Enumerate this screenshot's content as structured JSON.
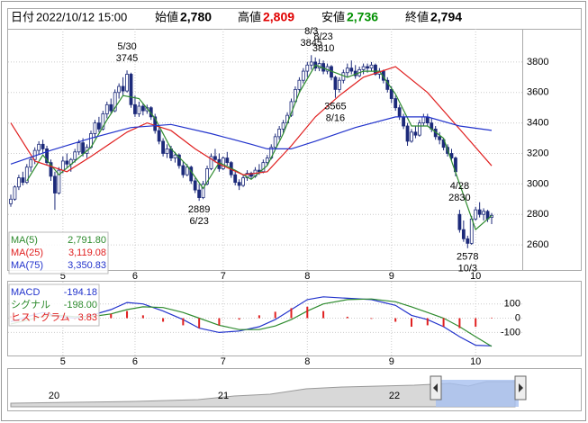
{
  "header": {
    "date_label": "日付",
    "date": "2022/10/12 15:00",
    "open_label": "始値",
    "open": "2,780",
    "high_label": "高値",
    "high": "2,809",
    "low_label": "安値",
    "low": "2,736",
    "close_label": "終値",
    "close": "2,794"
  },
  "chart_data": [
    {
      "type": "candlestick",
      "up_color": "#ffffff",
      "down_color": "#1c2a7a",
      "grid": true,
      "ylim": [
        2435,
        4018
      ],
      "yticks": [
        2600,
        2800,
        3000,
        3200,
        3400,
        3600,
        3800
      ],
      "xticks": [
        {
          "value": 13,
          "label": "5"
        },
        {
          "value": 31,
          "label": "6"
        },
        {
          "value": 53,
          "label": "7"
        },
        {
          "value": 74,
          "label": "8"
        },
        {
          "value": 95,
          "label": "9"
        },
        {
          "value": 116,
          "label": "10"
        }
      ],
      "candles": [
        [
          2870,
          2930,
          2850,
          2900
        ],
        [
          2900,
          2990,
          2890,
          2980
        ],
        [
          2980,
          3060,
          2960,
          3040
        ],
        [
          3040,
          3080,
          2990,
          3010
        ],
        [
          3010,
          3130,
          3000,
          3110
        ],
        [
          3110,
          3180,
          3080,
          3160
        ],
        [
          3160,
          3240,
          3130,
          3220
        ],
        [
          3220,
          3280,
          3190,
          3260
        ],
        [
          3260,
          3290,
          3200,
          3230
        ],
        [
          3230,
          3250,
          3120,
          3140
        ],
        [
          3140,
          3160,
          3020,
          3050
        ],
        [
          3050,
          3080,
          2830,
          2940
        ],
        [
          2940,
          3110,
          2930,
          3090
        ],
        [
          3090,
          3180,
          3070,
          3150
        ],
        [
          3150,
          3200,
          3110,
          3130
        ],
        [
          3130,
          3170,
          3080,
          3160
        ],
        [
          3160,
          3230,
          3140,
          3210
        ],
        [
          3210,
          3290,
          3190,
          3270
        ],
        [
          3270,
          3300,
          3180,
          3200
        ],
        [
          3200,
          3260,
          3170,
          3240
        ],
        [
          3240,
          3350,
          3230,
          3330
        ],
        [
          3330,
          3420,
          3300,
          3400
        ],
        [
          3400,
          3440,
          3340,
          3360
        ],
        [
          3360,
          3480,
          3350,
          3460
        ],
        [
          3460,
          3540,
          3430,
          3520
        ],
        [
          3520,
          3560,
          3460,
          3480
        ],
        [
          3480,
          3620,
          3470,
          3600
        ],
        [
          3600,
          3660,
          3560,
          3640
        ],
        [
          3640,
          3700,
          3580,
          3610
        ],
        [
          3610,
          3745,
          3600,
          3720
        ],
        [
          3720,
          3730,
          3500,
          3520
        ],
        [
          3520,
          3580,
          3440,
          3460
        ],
        [
          3460,
          3540,
          3440,
          3510
        ],
        [
          3510,
          3530,
          3450,
          3480
        ],
        [
          3480,
          3520,
          3460,
          3500
        ],
        [
          3500,
          3510,
          3420,
          3440
        ],
        [
          3440,
          3460,
          3330,
          3350
        ],
        [
          3350,
          3380,
          3260,
          3280
        ],
        [
          3280,
          3300,
          3180,
          3200
        ],
        [
          3200,
          3260,
          3170,
          3230
        ],
        [
          3230,
          3250,
          3150,
          3170
        ],
        [
          3170,
          3210,
          3140,
          3190
        ],
        [
          3190,
          3200,
          3100,
          3120
        ],
        [
          3120,
          3150,
          3040,
          3060
        ],
        [
          3060,
          3130,
          3050,
          3110
        ],
        [
          3110,
          3120,
          3000,
          3020
        ],
        [
          3020,
          3040,
          2940,
          2960
        ],
        [
          2960,
          3000,
          2889,
          2910
        ],
        [
          2910,
          3020,
          2900,
          3000
        ],
        [
          3000,
          3120,
          2990,
          3100
        ],
        [
          3100,
          3200,
          3090,
          3180
        ],
        [
          3180,
          3230,
          3140,
          3160
        ],
        [
          3160,
          3200,
          3080,
          3100
        ],
        [
          3100,
          3180,
          3090,
          3170
        ],
        [
          3170,
          3210,
          3120,
          3140
        ],
        [
          3140,
          3150,
          3040,
          3060
        ],
        [
          3060,
          3080,
          2990,
          3010
        ],
        [
          3010,
          3030,
          2960,
          2990
        ],
        [
          2990,
          3060,
          2980,
          3040
        ],
        [
          3040,
          3090,
          3020,
          3070
        ],
        [
          3070,
          3080,
          3030,
          3050
        ],
        [
          3050,
          3110,
          3040,
          3090
        ],
        [
          3090,
          3130,
          3060,
          3080
        ],
        [
          3080,
          3160,
          3070,
          3140
        ],
        [
          3140,
          3190,
          3120,
          3170
        ],
        [
          3170,
          3260,
          3160,
          3240
        ],
        [
          3240,
          3330,
          3230,
          3310
        ],
        [
          3310,
          3380,
          3290,
          3360
        ],
        [
          3360,
          3420,
          3330,
          3400
        ],
        [
          3400,
          3470,
          3390,
          3450
        ],
        [
          3450,
          3560,
          3440,
          3540
        ],
        [
          3540,
          3640,
          3530,
          3620
        ],
        [
          3620,
          3700,
          3600,
          3680
        ],
        [
          3680,
          3760,
          3660,
          3740
        ],
        [
          3740,
          3800,
          3700,
          3780
        ],
        [
          3780,
          3845,
          3750,
          3800
        ],
        [
          3800,
          3830,
          3740,
          3760
        ],
        [
          3760,
          3820,
          3740,
          3790
        ],
        [
          3790,
          3810,
          3720,
          3740
        ],
        [
          3740,
          3790,
          3720,
          3770
        ],
        [
          3770,
          3780,
          3680,
          3700
        ],
        [
          3700,
          3710,
          3565,
          3620
        ],
        [
          3620,
          3700,
          3600,
          3680
        ],
        [
          3680,
          3750,
          3660,
          3730
        ],
        [
          3730,
          3790,
          3700,
          3760
        ],
        [
          3760,
          3810,
          3720,
          3740
        ],
        [
          3740,
          3780,
          3690,
          3710
        ],
        [
          3710,
          3770,
          3700,
          3750
        ],
        [
          3750,
          3790,
          3720,
          3770
        ],
        [
          3770,
          3790,
          3730,
          3760
        ],
        [
          3760,
          3800,
          3740,
          3780
        ],
        [
          3780,
          3790,
          3710,
          3720
        ],
        [
          3720,
          3760,
          3690,
          3740
        ],
        [
          3740,
          3750,
          3660,
          3680
        ],
        [
          3680,
          3700,
          3600,
          3620
        ],
        [
          3620,
          3640,
          3530,
          3560
        ],
        [
          3560,
          3580,
          3480,
          3500
        ],
        [
          3500,
          3520,
          3420,
          3440
        ],
        [
          3440,
          3460,
          3360,
          3380
        ],
        [
          3380,
          3400,
          3250,
          3280
        ],
        [
          3280,
          3360,
          3270,
          3340
        ],
        [
          3340,
          3380,
          3300,
          3320
        ],
        [
          3320,
          3420,
          3310,
          3400
        ],
        [
          3400,
          3460,
          3380,
          3440
        ],
        [
          3440,
          3460,
          3380,
          3400
        ],
        [
          3400,
          3430,
          3340,
          3360
        ],
        [
          3360,
          3380,
          3290,
          3310
        ],
        [
          3310,
          3340,
          3260,
          3290
        ],
        [
          3290,
          3300,
          3220,
          3240
        ],
        [
          3240,
          3260,
          3180,
          3200
        ],
        [
          3200,
          3230,
          3150,
          3170
        ],
        [
          3170,
          3180,
          3050,
          3080
        ],
        [
          2800,
          2830,
          2680,
          2700
        ],
        [
          2700,
          2760,
          2620,
          2640
        ],
        [
          2640,
          2660,
          2578,
          2610
        ],
        [
          2610,
          2790,
          2600,
          2770
        ],
        [
          2770,
          2850,
          2760,
          2830
        ],
        [
          2830,
          2880,
          2780,
          2800
        ],
        [
          2800,
          2840,
          2760,
          2820
        ],
        [
          2820,
          2830,
          2750,
          2770
        ],
        [
          2780,
          2809,
          2736,
          2794
        ]
      ],
      "series": [
        {
          "name": "MA(5)",
          "legend_value": "2,791.80",
          "color": "#2e8b2e",
          "x": [
            4,
            8,
            12,
            16,
            20,
            24,
            28,
            32,
            36,
            40,
            44,
            48,
            52,
            56,
            60,
            64,
            68,
            72,
            76,
            80,
            84,
            88,
            92,
            96,
            100,
            104,
            108,
            112,
            116,
            120
          ],
          "values": [
            3020,
            3190,
            3060,
            3150,
            3240,
            3420,
            3580,
            3560,
            3430,
            3230,
            3120,
            2970,
            3140,
            3090,
            3030,
            3120,
            3330,
            3600,
            3780,
            3740,
            3700,
            3740,
            3740,
            3590,
            3380,
            3380,
            3300,
            3000,
            2700,
            2792
          ]
        },
        {
          "name": "MA(25)",
          "legend_value": "3,119.08",
          "color": "#e02020",
          "x": [
            0,
            6,
            14,
            20,
            29,
            34,
            40,
            46,
            52,
            58,
            64,
            70,
            76,
            82,
            88,
            96,
            104,
            112,
            120
          ],
          "values": [
            3400,
            3150,
            3080,
            3180,
            3340,
            3400,
            3350,
            3230,
            3130,
            3060,
            3080,
            3250,
            3440,
            3580,
            3700,
            3770,
            3600,
            3360,
            3119
          ]
        },
        {
          "name": "MA(75)",
          "legend_value": "3,350.83",
          "color": "#2233cc",
          "x": [
            0,
            10,
            20,
            30,
            40,
            50,
            60,
            64,
            70,
            76,
            86,
            96,
            104,
            112,
            120
          ],
          "values": [
            3130,
            3220,
            3300,
            3370,
            3390,
            3330,
            3260,
            3230,
            3230,
            3280,
            3370,
            3440,
            3440,
            3380,
            3351
          ]
        }
      ],
      "annotations": [
        {
          "date": "5/30",
          "price": 3745
        },
        {
          "date": "4/28",
          "price": 2830
        },
        {
          "date": "6/23",
          "price": 2889
        },
        {
          "date": "8/3",
          "price": 3845
        },
        {
          "date": "8/16",
          "price": 3565
        },
        {
          "date": "8/23",
          "price": 3810
        },
        {
          "date": "10/3",
          "price": 2578
        }
      ]
    },
    {
      "type": "macd",
      "grid": true,
      "ylim": [
        -262,
        256
      ],
      "yticks": [
        100,
        0,
        -100
      ],
      "xticks": [
        {
          "value": 13,
          "label": "5"
        },
        {
          "value": 31,
          "label": "6"
        },
        {
          "value": 53,
          "label": "7"
        },
        {
          "value": 74,
          "label": "8"
        },
        {
          "value": 95,
          "label": "9"
        },
        {
          "value": 116,
          "label": "10"
        }
      ],
      "x": [
        0,
        4,
        8,
        12,
        16,
        20,
        25,
        29,
        33,
        38,
        43,
        47,
        52,
        57,
        62,
        66,
        70,
        74,
        78,
        84,
        90,
        96,
        100,
        104,
        108,
        112,
        116,
        120
      ],
      "series": [
        {
          "name": "MACD",
          "legend_value": "-194.18",
          "color": "#2233cc",
          "style": "line",
          "values": [
            -25,
            10,
            40,
            10,
            0,
            20,
            60,
            110,
            100,
            50,
            -10,
            -70,
            -100,
            -90,
            -60,
            -10,
            60,
            130,
            150,
            140,
            130,
            90,
            20,
            -10,
            -60,
            -130,
            -190,
            -194.18
          ]
        },
        {
          "name": "シグナル",
          "legend_value": "-198.00",
          "color": "#2e8b2e",
          "style": "line",
          "values": [
            -40,
            -15,
            15,
            20,
            10,
            10,
            30,
            60,
            80,
            75,
            40,
            0,
            -50,
            -80,
            -80,
            -55,
            -10,
            50,
            100,
            130,
            135,
            115,
            80,
            40,
            0,
            -60,
            -130,
            -198
          ]
        },
        {
          "name": "ヒストグラム",
          "legend_value": "3.83",
          "color": "#e02020",
          "style": "bar",
          "values": [
            15,
            25,
            25,
            -10,
            -10,
            10,
            30,
            50,
            20,
            -25,
            -50,
            -70,
            -50,
            -10,
            20,
            45,
            70,
            80,
            50,
            10,
            -5,
            -25,
            -60,
            -50,
            -60,
            -70,
            -60,
            3.83
          ]
        }
      ]
    }
  ],
  "navigator": {
    "labels": [
      "20",
      "21",
      "22"
    ]
  }
}
